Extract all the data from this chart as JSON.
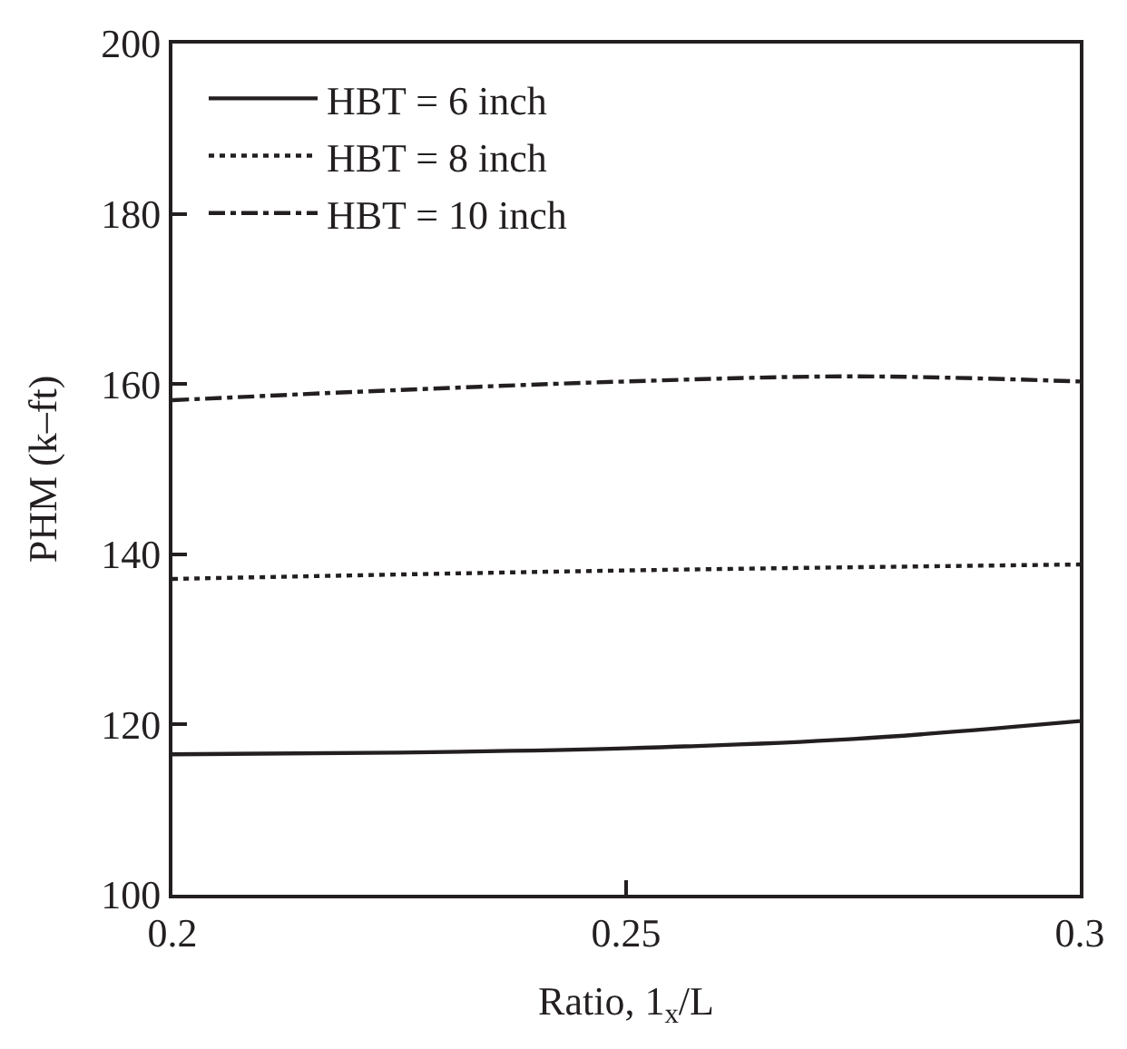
{
  "chart_data": {
    "type": "line",
    "xlabel": "Ratio, 1$_{x}$/L",
    "ylabel": "PHM (k–ft)",
    "xlim": [
      0.2,
      0.3
    ],
    "xticks": [
      0.2,
      0.25,
      0.3
    ],
    "ylim": [
      100,
      200
    ],
    "yticks": [
      100,
      120,
      140,
      160,
      180,
      200
    ],
    "grid": false,
    "legend": "top left",
    "marker": "none",
    "series": [
      {
        "name": "HBT = 6 inch",
        "color": "#231f20",
        "line_style": "solid",
        "x": [
          0.2,
          0.225,
          0.25,
          0.275,
          0.3
        ],
        "values": [
          116.5,
          116.7,
          117.2,
          118.3,
          120.4
        ]
      },
      {
        "name": "HBT = 8 inch",
        "color": "#231f20",
        "line_style": "dotted",
        "x": [
          0.2,
          0.25,
          0.3
        ],
        "values": [
          137.1,
          138.1,
          138.8
        ]
      },
      {
        "name": "HBT = 10 inch",
        "color": "#231f20",
        "line_style": "dashdot",
        "x": [
          0.2,
          0.225,
          0.25,
          0.275,
          0.3
        ],
        "values": [
          158.1,
          159.3,
          160.3,
          160.9,
          160.3
        ]
      }
    ]
  }
}
